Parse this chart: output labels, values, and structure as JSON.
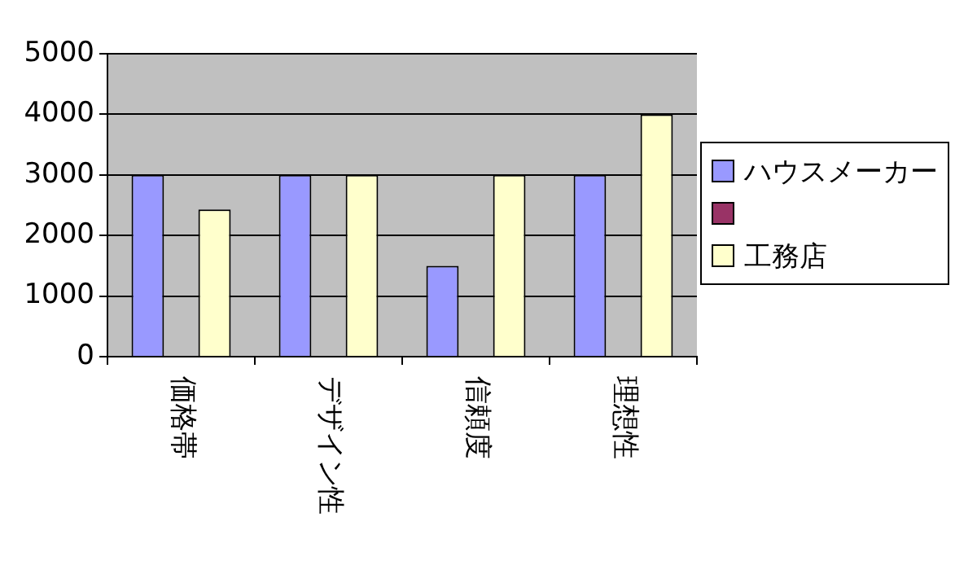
{
  "chart_data": {
    "type": "bar",
    "categories": [
      "価格帯",
      "デザイン性",
      "信頼度",
      "理想性"
    ],
    "series": [
      {
        "name": "ハウスメーカー",
        "color": "#9999ff",
        "values": [
          3000,
          3000,
          1500,
          3000
        ]
      },
      {
        "color": "#993366",
        "values": [
          null,
          null,
          null,
          null
        ]
      },
      {
        "name": "工務店",
        "color": "#ffffcc",
        "values": [
          2430,
          3000,
          3000,
          4000
        ]
      }
    ],
    "ylim": [
      0,
      5000
    ],
    "yticks": [
      0,
      1000,
      2000,
      3000,
      4000,
      5000
    ],
    "grid": "y",
    "legend": "right"
  }
}
